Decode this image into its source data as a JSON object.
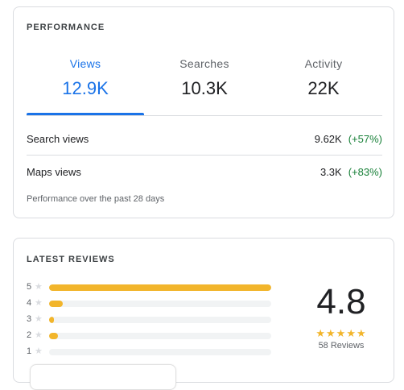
{
  "performance": {
    "header": "PERFORMANCE",
    "tabs": [
      {
        "label": "Views",
        "value": "12.9K",
        "active": true
      },
      {
        "label": "Searches",
        "value": "10.3K",
        "active": false
      },
      {
        "label": "Activity",
        "value": "22K",
        "active": false
      }
    ],
    "rows": [
      {
        "label": "Search views",
        "value": "9.62K",
        "change": "(+57%)"
      },
      {
        "label": "Maps views",
        "value": "3.3K",
        "change": "(+83%)"
      }
    ],
    "footnote": "Performance over the past 28 days"
  },
  "reviews": {
    "header": "LATEST REVIEWS",
    "distribution": [
      {
        "stars": "5",
        "fraction": 1.0
      },
      {
        "stars": "4",
        "fraction": 0.06
      },
      {
        "stars": "3",
        "fraction": 0.02
      },
      {
        "stars": "2",
        "fraction": 0.04
      },
      {
        "stars": "1",
        "fraction": 0.0
      }
    ],
    "average": "4.8",
    "stars_display": "★★★★★",
    "count_label": "58 Reviews",
    "star_icon": "★"
  },
  "colors": {
    "accent": "#1a73e8",
    "positive": "#188038",
    "rating": "#f2b52b"
  }
}
